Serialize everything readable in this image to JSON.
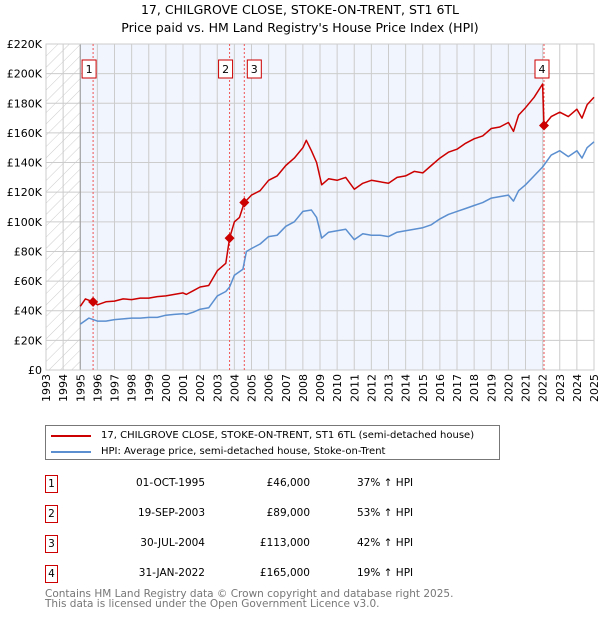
{
  "title": "17, CHILGROVE CLOSE, STOKE-ON-TRENT, ST1 6TL",
  "subtitle": "Price paid vs. HM Land Registry's House Price Index (HPI)",
  "chart_data": {
    "type": "line",
    "ylim": [
      0,
      220000
    ],
    "xlim": [
      1993,
      2025
    ],
    "yticks": [
      "£0",
      "£20K",
      "£40K",
      "£60K",
      "£80K",
      "£100K",
      "£120K",
      "£140K",
      "£160K",
      "£180K",
      "£200K",
      "£220K"
    ],
    "xticks": [
      "1993",
      "1994",
      "1995",
      "1996",
      "1997",
      "1998",
      "1999",
      "2000",
      "2001",
      "2002",
      "2003",
      "2004",
      "2005",
      "2006",
      "2007",
      "2008",
      "2009",
      "2010",
      "2011",
      "2012",
      "2013",
      "2014",
      "2015",
      "2016",
      "2017",
      "2018",
      "2019",
      "2020",
      "2021",
      "2022",
      "2023",
      "2024",
      "2025"
    ],
    "grid": true,
    "series": [
      {
        "name": "17, CHILGROVE CLOSE, STOKE-ON-TRENT, ST1 6TL (semi-detached house)",
        "color": "#cc0000",
        "x": [
          1995,
          1995.3,
          1995.75,
          1996,
          1996.5,
          1997,
          1997.5,
          1998,
          1998.5,
          1999,
          1999.5,
          2000,
          2000.5,
          2001,
          2001.2,
          2001.6,
          2002,
          2002.5,
          2003,
          2003.5,
          2003.72,
          2004,
          2004.3,
          2004.58,
          2005,
          2005.5,
          2006,
          2006.5,
          2007,
          2007.5,
          2008,
          2008.2,
          2008.5,
          2008.8,
          2009.1,
          2009.5,
          2010,
          2010.5,
          2011,
          2011.5,
          2012,
          2012.5,
          2013,
          2013.5,
          2014,
          2014.5,
          2015,
          2015.5,
          2016,
          2016.5,
          2017,
          2017.5,
          2018,
          2018.5,
          2019,
          2019.5,
          2020,
          2020.3,
          2020.6,
          2021,
          2021.5,
          2022,
          2022.08,
          2022.5,
          2023,
          2023.5,
          2024,
          2024.3,
          2024.6,
          2025
        ],
        "y": [
          43000,
          48000,
          46000,
          44000,
          46000,
          46500,
          48000,
          47500,
          48500,
          48500,
          49500,
          50000,
          51000,
          52000,
          51000,
          53500,
          56000,
          57000,
          67000,
          72000,
          89000,
          100000,
          103000,
          113000,
          118000,
          121000,
          128000,
          131000,
          138000,
          143000,
          150000,
          155000,
          148000,
          140000,
          125000,
          129000,
          128000,
          130000,
          122000,
          126000,
          128000,
          127000,
          126000,
          130000,
          131000,
          134000,
          133000,
          138000,
          143000,
          147000,
          149000,
          153000,
          156000,
          158000,
          163000,
          164000,
          167000,
          161000,
          172000,
          177000,
          184000,
          193000,
          165000,
          171000,
          174000,
          171000,
          176000,
          170000,
          179000,
          184000
        ]
      },
      {
        "name": "HPI: Average price, semi-detached house, Stoke-on-Trent",
        "color": "#5b8fd0",
        "x": [
          1995,
          1995.5,
          1996,
          1996.5,
          1997,
          1997.5,
          1998,
          1998.5,
          1999,
          1999.5,
          2000,
          2000.5,
          2001,
          2001.2,
          2001.6,
          2002,
          2002.5,
          2003,
          2003.5,
          2003.72,
          2004,
          2004.5,
          2004.7,
          2005,
          2005.5,
          2006,
          2006.5,
          2007,
          2007.5,
          2008,
          2008.5,
          2008.8,
          2009.1,
          2009.5,
          2010,
          2010.5,
          2011,
          2011.5,
          2012,
          2012.5,
          2013,
          2013.5,
          2014,
          2014.5,
          2015,
          2015.5,
          2016,
          2016.5,
          2017,
          2017.5,
          2018,
          2018.5,
          2019,
          2019.5,
          2020,
          2020.3,
          2020.6,
          2021,
          2021.5,
          2022,
          2022.5,
          2023,
          2023.5,
          2024,
          2024.3,
          2024.6,
          2025
        ],
        "y": [
          31000,
          35000,
          33000,
          33000,
          34000,
          34500,
          35000,
          35000,
          35500,
          35500,
          37000,
          37500,
          38000,
          37500,
          39000,
          41000,
          42000,
          50000,
          53000,
          56000,
          64000,
          68000,
          80000,
          82000,
          85000,
          90000,
          91000,
          97000,
          100000,
          107000,
          108000,
          103000,
          89000,
          93000,
          94000,
          95000,
          88000,
          92000,
          91000,
          91000,
          90000,
          93000,
          94000,
          95000,
          96000,
          98000,
          102000,
          105000,
          107000,
          109000,
          111000,
          113000,
          116000,
          117000,
          118000,
          114000,
          121000,
          125000,
          131000,
          137000,
          145000,
          148000,
          144000,
          148000,
          143000,
          150000,
          154000
        ]
      }
    ],
    "sales": [
      {
        "label": "1",
        "x": 1995.75,
        "price": 46000
      },
      {
        "label": "2",
        "x": 2003.72,
        "price": 89000
      },
      {
        "label": "3",
        "x": 2004.58,
        "price": 113000
      },
      {
        "label": "4",
        "x": 2022.08,
        "price": 165000
      }
    ]
  },
  "legend": [
    {
      "label": "17, CHILGROVE CLOSE, STOKE-ON-TRENT, ST1 6TL (semi-detached house)",
      "color": "#cc0000"
    },
    {
      "label": "HPI: Average price, semi-detached house, Stoke-on-Trent",
      "color": "#5b8fd0"
    }
  ],
  "table": [
    {
      "num": "1",
      "date": "01-OCT-1995",
      "price": "£46,000",
      "hpi": "37% ↑ HPI"
    },
    {
      "num": "2",
      "date": "19-SEP-2003",
      "price": "£89,000",
      "hpi": "53% ↑ HPI"
    },
    {
      "num": "3",
      "date": "30-JUL-2004",
      "price": "£113,000",
      "hpi": "42% ↑ HPI"
    },
    {
      "num": "4",
      "date": "31-JAN-2022",
      "price": "£165,000",
      "hpi": "19% ↑ HPI"
    }
  ],
  "footer": {
    "line1": "Contains HM Land Registry data © Crown copyright and database right 2025.",
    "line2": "This data is licensed under the Open Government Licence v3.0."
  }
}
